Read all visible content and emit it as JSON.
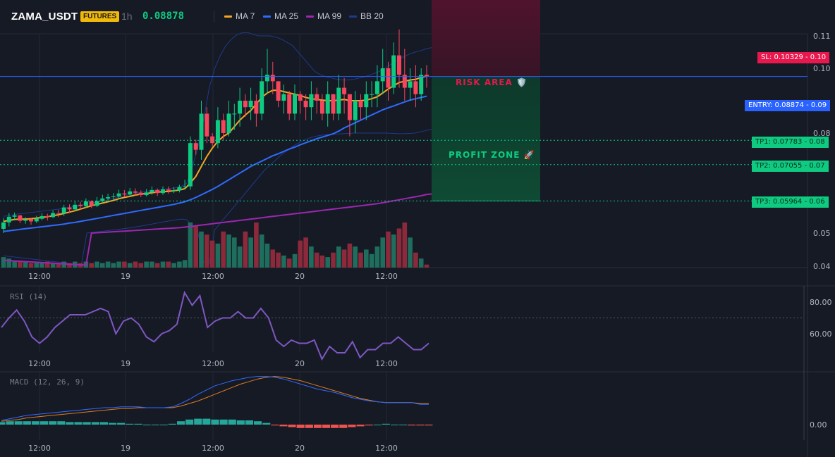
{
  "header": {
    "symbol": "ZAMA_USDT",
    "badge": "FUTURES",
    "timeframe": "1h",
    "price": "0.08878"
  },
  "legend": [
    {
      "label": "MA 7",
      "color": "#f5a623"
    },
    {
      "label": "MA 25",
      "color": "#2f6bff"
    },
    {
      "label": "MA 99",
      "color": "#9c27b0"
    },
    {
      "label": "BB 20",
      "color": "#1e3a8a"
    }
  ],
  "levels": {
    "sl": {
      "label": "SL: 0.10329",
      "axis": "0.10",
      "color": "#e8174d"
    },
    "entry": {
      "label": "ENTRY: 0.08874",
      "axis": "0.09",
      "color": "#2962ff"
    },
    "tp": [
      {
        "label": "TP1: 0.07783",
        "axis": "0.08",
        "color": "#0ecb81"
      },
      {
        "label": "TP2: 0.07055",
        "axis": "0.07",
        "color": "#0ecb81"
      },
      {
        "label": "TP3: 0.05964",
        "axis": "0.06",
        "color": "#0ecb81"
      }
    ]
  },
  "zones": {
    "risk": "RISK AREA 🛡️",
    "profit": "PROFIT ZONE 🚀"
  },
  "panels": {
    "rsi": "RSI (14)",
    "macd": "MACD (12, 26, 9)"
  },
  "chart_data": [
    {
      "type": "candlestick",
      "ylim": [
        0.04,
        0.11
      ],
      "y_ticks": [
        "0.11",
        "0.10",
        "0.09",
        "0.08",
        "0.05",
        "0.04"
      ],
      "x_ticks": [
        "12:00",
        "19",
        "12:00",
        "20",
        "12:00"
      ],
      "open": [
        0.0513,
        0.0532,
        0.0549,
        0.0553,
        0.0537,
        0.0541,
        0.0535,
        0.0543,
        0.0551,
        0.0548,
        0.056,
        0.0559,
        0.0577,
        0.0571,
        0.0585,
        0.0581,
        0.0595,
        0.0582,
        0.0596,
        0.0604,
        0.0608,
        0.061,
        0.0619,
        0.0616,
        0.0625,
        0.0621,
        0.0614,
        0.0622,
        0.0629,
        0.062,
        0.0631,
        0.0627,
        0.0628,
        0.0638,
        0.064,
        0.077,
        0.075,
        0.083,
        0.079,
        0.077,
        0.082,
        0.08,
        0.083,
        0.083,
        0.085,
        0.084,
        0.085,
        0.083,
        0.088,
        0.089,
        0.088,
        0.085,
        0.086,
        0.083,
        0.086,
        0.085,
        0.084,
        0.086,
        0.085,
        0.083,
        0.086,
        0.083,
        0.087,
        0.086,
        0.082,
        0.085,
        0.084,
        0.086,
        0.086,
        0.088,
        0.09,
        0.087,
        0.092,
        0.089,
        0.087,
        0.088,
        0.086,
        0.089
      ],
      "close": [
        0.0532,
        0.0549,
        0.0553,
        0.0537,
        0.0541,
        0.0535,
        0.0543,
        0.0551,
        0.0548,
        0.056,
        0.0559,
        0.0577,
        0.0571,
        0.0585,
        0.0581,
        0.0595,
        0.0582,
        0.0596,
        0.0604,
        0.0608,
        0.061,
        0.0619,
        0.0616,
        0.0625,
        0.0621,
        0.0614,
        0.0622,
        0.0629,
        0.062,
        0.0631,
        0.0627,
        0.0628,
        0.0638,
        0.064,
        0.077,
        0.075,
        0.083,
        0.079,
        0.077,
        0.082,
        0.08,
        0.083,
        0.083,
        0.085,
        0.084,
        0.085,
        0.083,
        0.088,
        0.089,
        0.088,
        0.085,
        0.086,
        0.083,
        0.086,
        0.085,
        0.084,
        0.086,
        0.085,
        0.083,
        0.086,
        0.083,
        0.087,
        0.086,
        0.082,
        0.085,
        0.084,
        0.086,
        0.086,
        0.088,
        0.09,
        0.087,
        0.092,
        0.089,
        0.087,
        0.088,
        0.086,
        0.089,
        0.0888
      ],
      "high": [
        0.0545,
        0.056,
        0.0562,
        0.0555,
        0.0548,
        0.0546,
        0.0552,
        0.056,
        0.0558,
        0.0568,
        0.057,
        0.0585,
        0.0586,
        0.0595,
        0.0594,
        0.0604,
        0.0598,
        0.0608,
        0.0615,
        0.0618,
        0.062,
        0.063,
        0.0629,
        0.0635,
        0.0634,
        0.0628,
        0.0632,
        0.064,
        0.0634,
        0.064,
        0.064,
        0.0638,
        0.0645,
        0.066,
        0.079,
        0.078,
        0.085,
        0.084,
        0.08,
        0.084,
        0.083,
        0.085,
        0.0845,
        0.087,
        0.086,
        0.087,
        0.086,
        0.09,
        0.093,
        0.091,
        0.088,
        0.0875,
        0.0865,
        0.0875,
        0.0865,
        0.086,
        0.088,
        0.087,
        0.086,
        0.088,
        0.086,
        0.089,
        0.0885,
        0.086,
        0.0865,
        0.086,
        0.088,
        0.088,
        0.0905,
        0.093,
        0.091,
        0.094,
        0.096,
        0.093,
        0.09,
        0.0905,
        0.09,
        0.0905
      ],
      "low": [
        0.05,
        0.052,
        0.0538,
        0.053,
        0.0528,
        0.0525,
        0.053,
        0.0538,
        0.0538,
        0.0545,
        0.0548,
        0.0552,
        0.056,
        0.0566,
        0.057,
        0.0575,
        0.0575,
        0.0578,
        0.059,
        0.0595,
        0.06,
        0.0602,
        0.0608,
        0.061,
        0.0612,
        0.0608,
        0.061,
        0.0615,
        0.0612,
        0.0615,
        0.0618,
        0.062,
        0.0622,
        0.0632,
        0.063,
        0.0735,
        0.072,
        0.077,
        0.076,
        0.0755,
        0.078,
        0.079,
        0.0805,
        0.081,
        0.0825,
        0.082,
        0.081,
        0.082,
        0.086,
        0.086,
        0.084,
        0.083,
        0.082,
        0.082,
        0.083,
        0.082,
        0.082,
        0.083,
        0.082,
        0.081,
        0.082,
        0.082,
        0.083,
        0.079,
        0.08,
        0.082,
        0.082,
        0.084,
        0.084,
        0.086,
        0.085,
        0.086,
        0.087,
        0.085,
        0.085,
        0.084,
        0.085,
        0.087
      ],
      "volume": [
        7,
        6,
        4,
        4,
        4,
        3,
        4,
        3,
        4,
        3,
        3,
        4,
        3,
        4,
        3,
        4,
        3,
        4,
        3,
        4,
        3,
        4,
        4,
        3,
        4,
        3,
        4,
        4,
        3,
        4,
        4,
        3,
        4,
        5,
        30,
        28,
        24,
        22,
        18,
        16,
        24,
        22,
        20,
        14,
        24,
        20,
        30,
        22,
        16,
        12,
        10,
        8,
        6,
        9,
        18,
        20,
        14,
        10,
        8,
        7,
        10,
        14,
        12,
        16,
        14,
        10,
        12,
        9,
        14,
        20,
        24,
        22,
        26,
        30,
        20,
        10,
        6,
        2
      ],
      "ma7": [
        0.0535,
        0.0538,
        0.0541,
        0.0542,
        0.0542,
        0.0543,
        0.0545,
        0.0547,
        0.0549,
        0.0552,
        0.0555,
        0.0559,
        0.0563,
        0.0567,
        0.0572,
        0.0577,
        0.0582,
        0.0586,
        0.059,
        0.0594,
        0.0598,
        0.0603,
        0.0607,
        0.061,
        0.0614,
        0.0617,
        0.0619,
        0.0621,
        0.0623,
        0.0624,
        0.0625,
        0.0627,
        0.0629,
        0.0633,
        0.065,
        0.067,
        0.07,
        0.073,
        0.0755,
        0.0775,
        0.079,
        0.08,
        0.081,
        0.082,
        0.0828,
        0.0835,
        0.0845,
        0.0855,
        0.0862,
        0.0866,
        0.0866,
        0.0864,
        0.0862,
        0.086,
        0.0858,
        0.0855,
        0.0853,
        0.0852,
        0.0851,
        0.085,
        0.085,
        0.0851,
        0.0852,
        0.085,
        0.085,
        0.085,
        0.0851,
        0.0853,
        0.0856,
        0.0862,
        0.0868,
        0.0873,
        0.0878,
        0.088,
        0.0882,
        0.0883,
        0.0886,
        0.0888
      ],
      "ma25": [
        0.0505,
        0.0507,
        0.0509,
        0.0511,
        0.0513,
        0.0515,
        0.0517,
        0.0519,
        0.0521,
        0.0523,
        0.0525,
        0.0527,
        0.053,
        0.0532,
        0.0535,
        0.0538,
        0.0541,
        0.0544,
        0.0547,
        0.055,
        0.0553,
        0.0556,
        0.0559,
        0.0562,
        0.0565,
        0.0568,
        0.0571,
        0.0574,
        0.0577,
        0.058,
        0.0583,
        0.0586,
        0.059,
        0.0594,
        0.06,
        0.0607,
        0.0615,
        0.0623,
        0.0631,
        0.064,
        0.065,
        0.066,
        0.067,
        0.068,
        0.069,
        0.07,
        0.0708,
        0.0716,
        0.0724,
        0.0732,
        0.0738,
        0.0745,
        0.0752,
        0.0758,
        0.0765,
        0.0771,
        0.0777,
        0.0783,
        0.0788,
        0.0793,
        0.0798,
        0.0803,
        0.0808,
        0.0812,
        0.0816,
        0.082,
        0.0824,
        0.0828,
        0.0832,
        0.0836,
        0.0839,
        0.0842,
        0.0845,
        0.0848,
        0.0851,
        0.0853,
        0.0855,
        0.0857
      ],
      "ma99": [
        0.0484,
        0.0485,
        0.0486,
        0.0487,
        0.0488,
        0.0489,
        0.049,
        0.0491,
        0.0492,
        0.0493,
        0.0494,
        0.0495,
        0.0496,
        0.0497,
        0.0498,
        0.0499,
        0.05,
        0.0501,
        0.0502,
        0.0503,
        0.0504,
        0.0505,
        0.0506,
        0.0507,
        0.0508,
        0.0509,
        0.051,
        0.0511,
        0.0512,
        0.0513,
        0.0514,
        0.0515,
        0.0516,
        0.0518,
        0.052,
        0.0522,
        0.0524,
        0.0526,
        0.0528,
        0.053,
        0.0532,
        0.0534,
        0.0536,
        0.0538,
        0.054,
        0.0542,
        0.0544,
        0.0546,
        0.0548,
        0.055,
        0.0552,
        0.0554,
        0.0556,
        0.0558,
        0.056,
        0.0562,
        0.0564,
        0.0566,
        0.0568,
        0.057,
        0.0572,
        0.0574,
        0.0576,
        0.0578,
        0.058,
        0.0582,
        0.0584,
        0.0586,
        0.0588,
        0.0591,
        0.0594,
        0.0597,
        0.06,
        0.0603,
        0.0606,
        0.0609,
        0.0612,
        0.0616
      ],
      "bb_upper": [
        0.055,
        0.0553,
        0.0556,
        0.0558,
        0.056,
        0.0562,
        0.0564,
        0.0566,
        0.0568,
        0.057,
        0.0572,
        0.0575,
        0.0578,
        0.0581,
        0.0584,
        0.0587,
        0.059,
        0.0593,
        0.0597,
        0.0601,
        0.0605,
        0.0609,
        0.0613,
        0.0617,
        0.062,
        0.0623,
        0.0626,
        0.0628,
        0.063,
        0.0632,
        0.0634,
        0.0636,
        0.064,
        0.065,
        0.07,
        0.076,
        0.082,
        0.087,
        0.09,
        0.092,
        0.0935,
        0.0945,
        0.0952,
        0.0955,
        0.0955,
        0.0952,
        0.095,
        0.095,
        0.095,
        0.0948,
        0.0945,
        0.094,
        0.0935,
        0.0925,
        0.0915,
        0.0905,
        0.0895,
        0.089,
        0.0887,
        0.0885,
        0.0883,
        0.0882,
        0.0882,
        0.0883,
        0.0885,
        0.0887,
        0.089,
        0.0893,
        0.0897,
        0.0902,
        0.0908,
        0.0913,
        0.0918,
        0.0922,
        0.0925,
        0.0927,
        0.093,
        0.0932
      ],
      "bb_lower": [
        0.047,
        0.0472,
        0.0474,
        0.0476,
        0.0478,
        0.048,
        0.0482,
        0.0484,
        0.0486,
        0.0488,
        0.049,
        0.0492,
        0.0494,
        0.0496,
        0.0498,
        0.05,
        0.0502,
        0.0504,
        0.0506,
        0.0508,
        0.051,
        0.0512,
        0.0514,
        0.0516,
        0.0519,
        0.0522,
        0.0525,
        0.0528,
        0.0531,
        0.0534,
        0.0537,
        0.054,
        0.0542,
        0.054,
        0.052,
        0.05,
        0.049,
        0.0495,
        0.051,
        0.053,
        0.055,
        0.057,
        0.059,
        0.061,
        0.063,
        0.065,
        0.067,
        0.069,
        0.0705,
        0.072,
        0.0735,
        0.0748,
        0.076,
        0.077,
        0.0778,
        0.0785,
        0.079,
        0.0793,
        0.0795,
        0.0796,
        0.0797,
        0.0798,
        0.0799,
        0.08,
        0.08,
        0.08,
        0.08,
        0.08,
        0.08,
        0.08,
        0.0799,
        0.0798,
        0.0798,
        0.0799,
        0.08,
        0.0802,
        0.0804,
        0.0806
      ]
    },
    {
      "type": "line",
      "name": "RSI (14)",
      "y_ticks": [
        "80.00",
        "60.00"
      ],
      "x_ticks": [
        "12:00",
        "19",
        "12:00",
        "20",
        "12:00"
      ],
      "values": [
        64,
        70,
        75,
        68,
        58,
        54,
        58,
        64,
        68,
        72,
        72,
        72,
        74,
        76,
        74,
        60,
        68,
        70,
        66,
        58,
        55,
        60,
        62,
        66,
        86,
        78,
        84,
        64,
        68,
        70,
        70,
        74,
        70,
        70,
        76,
        70,
        56,
        52,
        56,
        54,
        54,
        56,
        44,
        52,
        48,
        48,
        55,
        45,
        50,
        50,
        54,
        54,
        58,
        54,
        50,
        50,
        54
      ],
      "reference_level": 70
    },
    {
      "type": "bar+line",
      "name": "MACD (12, 26, 9)",
      "y_ticks": [
        "0.00"
      ],
      "x_ticks": [
        "12:00",
        "19",
        "12:00",
        "20",
        "12:00"
      ],
      "macd": [
        0.0005,
        0.0007,
        0.0009,
        0.0011,
        0.0012,
        0.0013,
        0.0014,
        0.0015,
        0.0016,
        0.0017,
        0.0018,
        0.0019,
        0.002,
        0.002,
        0.0021,
        0.0021,
        0.0021,
        0.002,
        0.002,
        0.002,
        0.0021,
        0.0025,
        0.003,
        0.0036,
        0.0041,
        0.0046,
        0.0049,
        0.0052,
        0.0054,
        0.0056,
        0.0057,
        0.0057,
        0.0056,
        0.0054,
        0.0051,
        0.0048,
        0.0045,
        0.0042,
        0.004,
        0.0038,
        0.0035,
        0.0032,
        0.003,
        0.0028,
        0.0027,
        0.0026,
        0.0026,
        0.0026,
        0.0026,
        0.0024,
        0.0024
      ],
      "signal": [
        0.0004,
        0.0005,
        0.0006,
        0.0008,
        0.0009,
        0.001,
        0.0011,
        0.0012,
        0.0013,
        0.0014,
        0.0015,
        0.0016,
        0.0017,
        0.0018,
        0.0019,
        0.0019,
        0.002,
        0.002,
        0.002,
        0.002,
        0.002,
        0.0022,
        0.0025,
        0.0028,
        0.0032,
        0.0036,
        0.004,
        0.0044,
        0.0048,
        0.0051,
        0.0054,
        0.0056,
        0.0057,
        0.0056,
        0.0054,
        0.0052,
        0.0049,
        0.0046,
        0.0043,
        0.004,
        0.0037,
        0.0034,
        0.0031,
        0.0029,
        0.0027,
        0.0026,
        0.0026,
        0.0026,
        0.0026,
        0.0025,
        0.0025
      ],
      "histogram": [
        0.0003,
        0.0004,
        0.0004,
        0.0004,
        0.0004,
        0.0004,
        0.0004,
        0.0004,
        0.0003,
        0.0003,
        0.0003,
        0.0003,
        0.0003,
        0.0002,
        0.0002,
        0.0001,
        0.0001,
        0.0,
        0.0,
        0.0,
        0.0001,
        0.0004,
        0.0006,
        0.0007,
        0.0007,
        0.0006,
        0.0006,
        0.0006,
        0.0005,
        0.0005,
        0.0004,
        0.0002,
        -0.0001,
        -0.0002,
        -0.0003,
        -0.0004,
        -0.0004,
        -0.0004,
        -0.0004,
        -0.0004,
        -0.0004,
        -0.0003,
        -0.0002,
        -0.0001,
        0.0,
        0.0001,
        0.0,
        0.0,
        -0.0001,
        -0.0001,
        -0.0001
      ]
    }
  ]
}
